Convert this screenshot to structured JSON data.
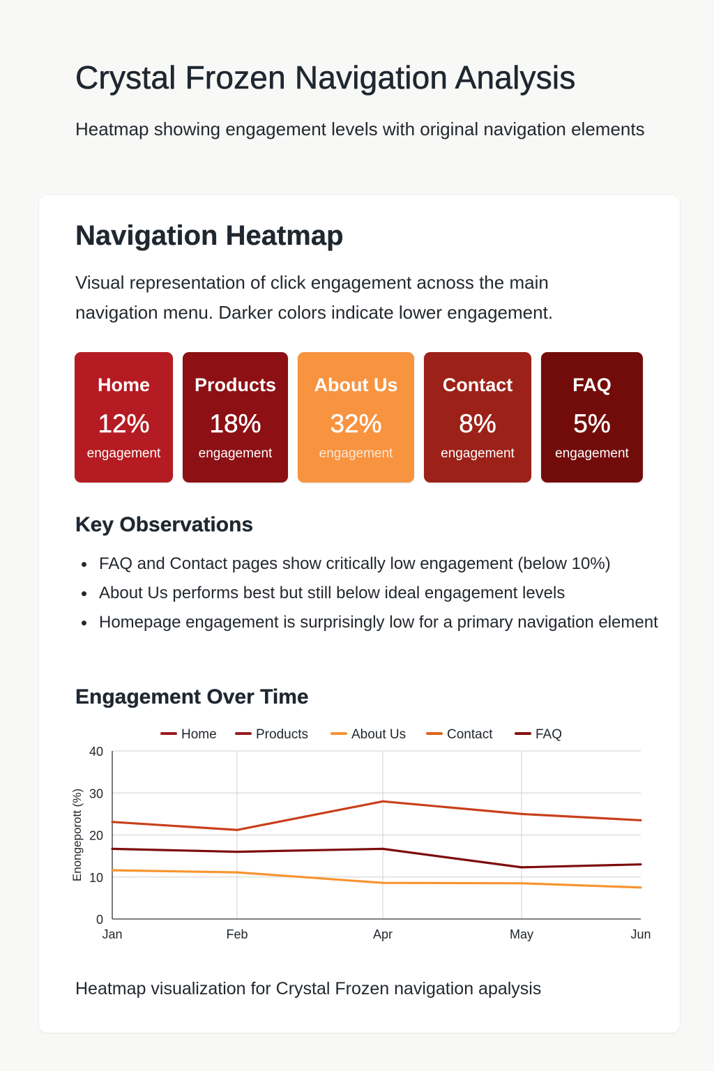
{
  "header": {
    "title": "Crystal Frozen Navigation Analysis",
    "subtitle": "Heatmap showing engagement levels with original navigation elements"
  },
  "heatmap": {
    "title": "Navigation Heatmap",
    "description": "Visual representation of click engagement acnoss the main navigation menu. Darker colors indicate lower engagement.",
    "tiles": [
      {
        "name": "Home",
        "value": "12%",
        "unit": "engagement",
        "color": "#b51b22"
      },
      {
        "name": "Products",
        "value": "18%",
        "unit": "engagement",
        "color": "#8c1014"
      },
      {
        "name": "About Us",
        "value": "32%",
        "unit": "engagement",
        "color": "#f89340"
      },
      {
        "name": "Contact",
        "value": "8%",
        "unit": "engagement",
        "color": "#9c2118"
      },
      {
        "name": "FAQ",
        "value": "5%",
        "unit": "engagement",
        "color": "#720c0a"
      }
    ]
  },
  "observations": {
    "title": "Key Observations",
    "items": [
      "FAQ and Contact pages show critically low engagement (below 10%)",
      "About Us performs best but still below ideal engagement levels",
      "Homepage engagement is surprisingly low for a primary navigation element"
    ]
  },
  "chart_section": {
    "title": "Engagement Over Time"
  },
  "chart_data": {
    "type": "line",
    "title": "Engagement Over Time",
    "xlabel": "",
    "ylabel": "Enongeporott (%)",
    "x": [
      "Jan",
      "Feb",
      "Apr",
      "May",
      "Jun"
    ],
    "ylim": [
      0,
      40
    ],
    "yticks": [
      0,
      10,
      20,
      30,
      40
    ],
    "grid": true,
    "legend_position": "top",
    "legend": [
      {
        "name": "Home",
        "color": "#9b1c1c"
      },
      {
        "name": "Products",
        "color": "#9b1c1c"
      },
      {
        "name": "About Us",
        "color": "#f7942f"
      },
      {
        "name": "Contact",
        "color": "#e0621a"
      },
      {
        "name": "FAQ",
        "color": "#8a1010"
      }
    ],
    "series": [
      {
        "name": "Contact",
        "color": "#c8401a",
        "values": [
          23.1,
          21.2,
          28.0,
          25.0,
          23.5
        ]
      },
      {
        "name": "Products",
        "color": "#7d0c0c",
        "values": [
          16.7,
          16.0,
          16.7,
          12.3,
          13.0
        ]
      },
      {
        "name": "About Us",
        "color": "#f7942f",
        "values": [
          11.6,
          11.1,
          8.6,
          8.5,
          7.5
        ]
      }
    ]
  },
  "caption": "Heatmap visualization for Crystal Frozen navigation apalysis"
}
